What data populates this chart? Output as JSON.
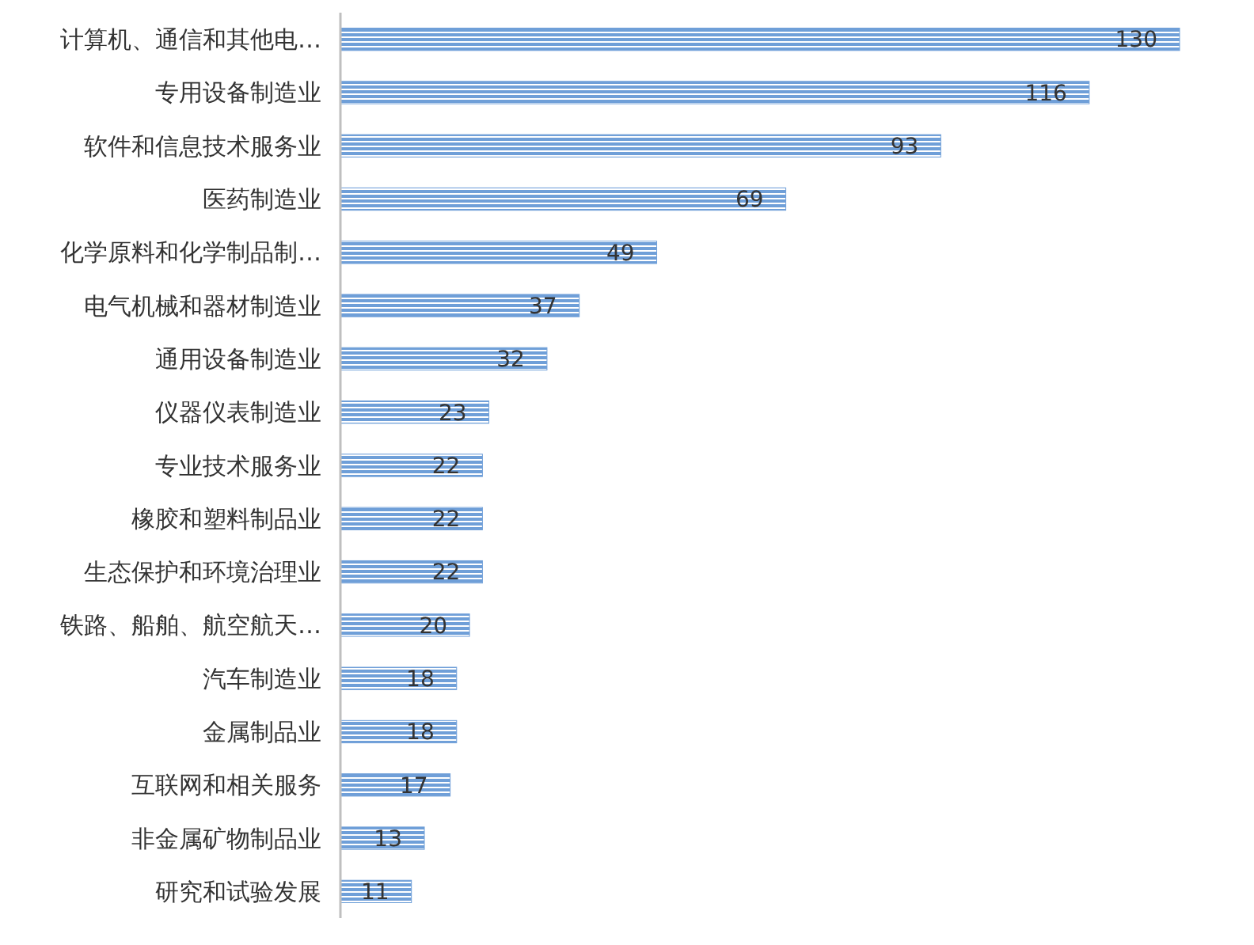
{
  "chart_data": {
    "type": "bar",
    "orientation": "horizontal",
    "categories": [
      "计算机、通信和其他电…",
      "专用设备制造业",
      "软件和信息技术服务业",
      "医药制造业",
      "化学原料和化学制品制…",
      "电气机械和器材制造业",
      "通用设备制造业",
      "仪器仪表制造业",
      "专业技术服务业",
      "橡胶和塑料制品业",
      "生态保护和环境治理业",
      "铁路、船舶、航空航天…",
      "汽车制造业",
      "金属制品业",
      "互联网和相关服务",
      "非金属矿物制品业",
      "研究和试验发展"
    ],
    "values": [
      130,
      116,
      93,
      69,
      49,
      37,
      32,
      23,
      22,
      22,
      22,
      20,
      18,
      18,
      17,
      13,
      11
    ],
    "color": "#6f9fd8",
    "data_labels": true
  }
}
